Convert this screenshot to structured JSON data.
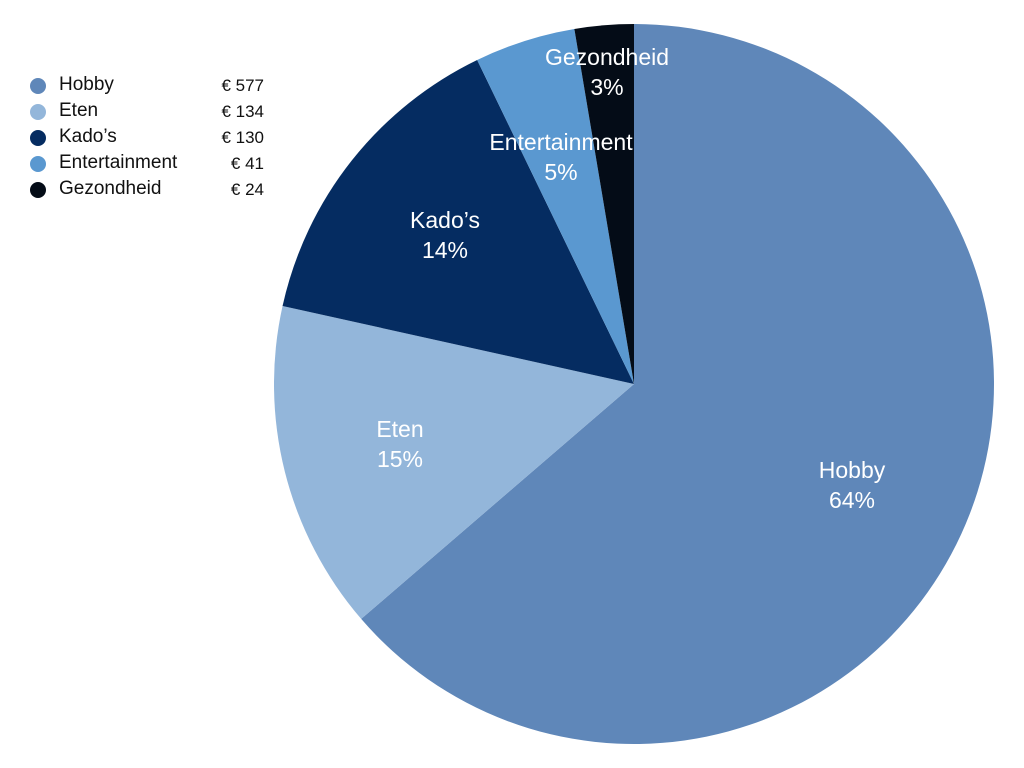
{
  "chart_data": {
    "type": "pie",
    "title": "",
    "categories": [
      "Hobby",
      "Eten",
      "Kado’s",
      "Entertainment",
      "Gezondheid"
    ],
    "values": [
      577,
      134,
      130,
      41,
      24
    ],
    "value_labels": [
      "€ 577",
      "€ 134",
      "€ 130",
      "€ 41",
      "€ 24"
    ],
    "percentages": [
      "64%",
      "15%",
      "14%",
      "5%",
      "3%"
    ],
    "colors": [
      "#5f87b9",
      "#93b6da",
      "#052c61",
      "#5a98d0",
      "#040c17"
    ],
    "start_angle_deg": 0,
    "direction": "clockwise",
    "legend_position": "top-left"
  },
  "legend": [
    {
      "label": "Hobby",
      "value": "€ 577",
      "color": "#5f87b9"
    },
    {
      "label": "Eten",
      "value": "€ 134",
      "color": "#93b6da"
    },
    {
      "label": "Kado’s",
      "value": "€ 130",
      "color": "#052c61"
    },
    {
      "label": "Entertainment",
      "value": "€ 41",
      "color": "#5a98d0"
    },
    {
      "label": "Gezondheid",
      "value": "€ 24",
      "color": "#040c17"
    }
  ],
  "slice_labels": [
    {
      "name": "Hobby",
      "pct": "64%"
    },
    {
      "name": "Eten",
      "pct": "15%"
    },
    {
      "name": "Kado’s",
      "pct": "14%"
    },
    {
      "name": "Entertainment",
      "pct": "5%"
    },
    {
      "name": "Gezondheid",
      "pct": "3%"
    }
  ]
}
